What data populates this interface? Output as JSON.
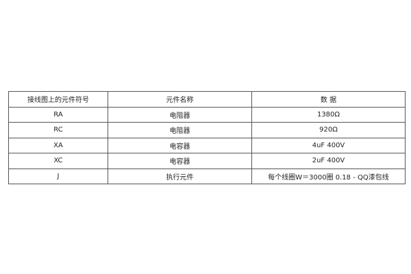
{
  "table": {
    "headers": [
      "接线图上的元件符号",
      "元件名称",
      "数 据"
    ],
    "rows": [
      [
        "RA",
        "电阻器",
        "1380Ω"
      ],
      [
        "RC",
        "电阻器",
        "920Ω"
      ],
      [
        "XA",
        "电容器",
        "4uF 400V"
      ],
      [
        "XC",
        "电容器",
        "2uF 400V"
      ],
      [
        "J",
        "执行元件",
        "每个线圈W＝3000圈 0.18 - QQ漆包线"
      ]
    ]
  }
}
